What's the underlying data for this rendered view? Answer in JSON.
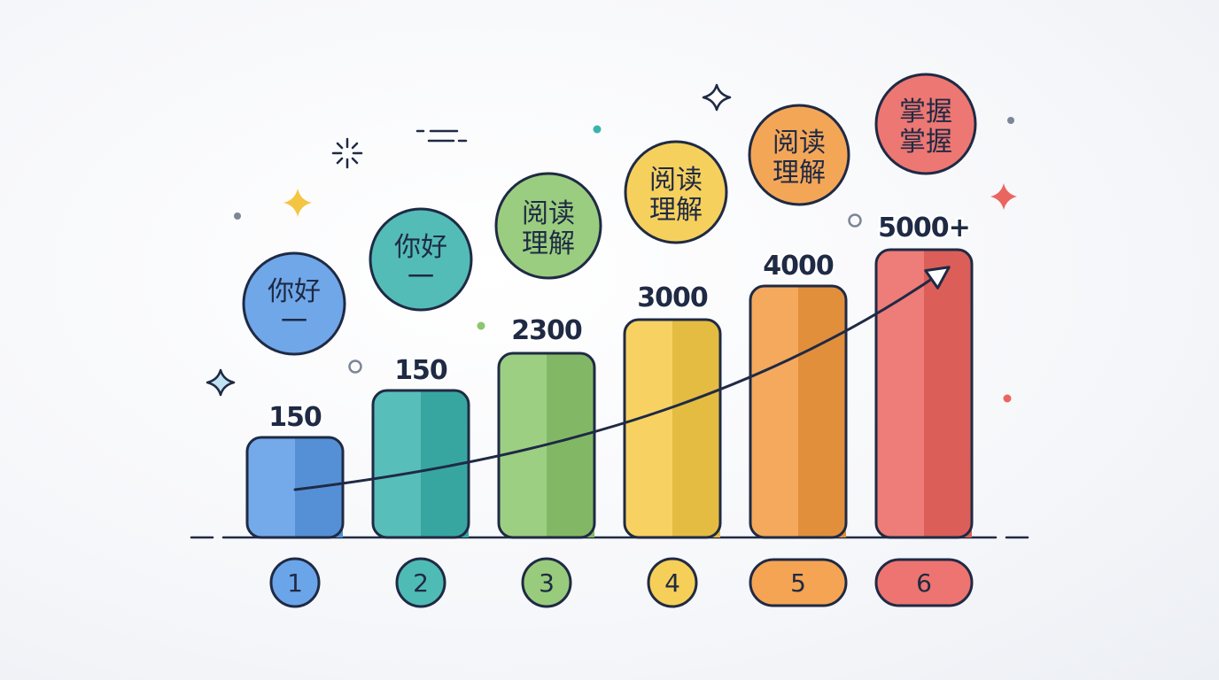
{
  "colors": {
    "outline": "#1f2a44",
    "blue": "#5b9be6",
    "teal": "#3bb3ad",
    "green": "#8cc66d",
    "yellow": "#f5ca47",
    "orange": "#f39a40",
    "red": "#eb6560"
  },
  "chart_data": {
    "type": "bar",
    "title": "",
    "xlabel": "",
    "ylabel": "",
    "categories": [
      "1",
      "2",
      "3",
      "4",
      "5",
      "6"
    ],
    "values": [
      150,
      150,
      2300,
      3000,
      4000,
      5000
    ],
    "value_labels": [
      "150",
      "150",
      "2300",
      "3000",
      "4000",
      "5000+"
    ],
    "bubble_labels": [
      [
        "你好",
        "一"
      ],
      [
        "你好",
        "一"
      ],
      [
        "阅读",
        "理解"
      ],
      [
        "阅读",
        "理解"
      ],
      [
        "阅读",
        "理解"
      ],
      [
        "掌握",
        "掌握"
      ]
    ],
    "bar_colors": [
      "#5b9be6",
      "#3bb3ad",
      "#8cc66d",
      "#f5ca47",
      "#f39a40",
      "#eb6560"
    ],
    "trend_arrow": true,
    "grid": false,
    "legend": "none"
  }
}
